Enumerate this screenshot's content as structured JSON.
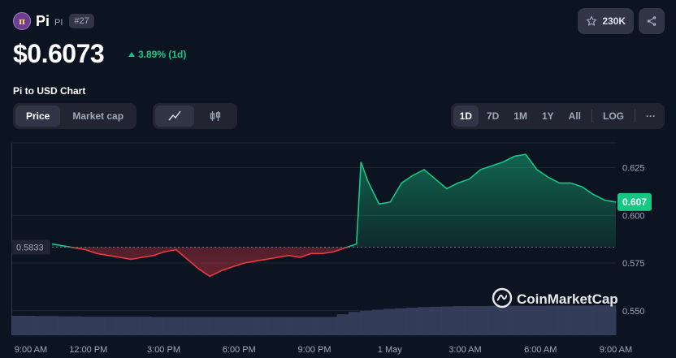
{
  "coin": {
    "name": "Pi",
    "symbol": "PI",
    "rank": "#27",
    "logo_glyph": "π"
  },
  "actions": {
    "watchlist_count": "230K",
    "star_icon": "star-icon",
    "share_icon": "share-icon"
  },
  "price": {
    "value": "$0.6073",
    "change": "3.89% (1d)",
    "direction": "up"
  },
  "chart_title": "Pi to USD Chart",
  "chart_type_tabs": [
    {
      "label": "Price",
      "active": true
    },
    {
      "label": "Market cap",
      "active": false
    }
  ],
  "chart_style_icons": [
    "line-chart-icon",
    "candlestick-icon"
  ],
  "range_tabs": [
    {
      "label": "1D",
      "active": true
    },
    {
      "label": "7D",
      "active": false
    },
    {
      "label": "1M",
      "active": false
    },
    {
      "label": "1Y",
      "active": false
    },
    {
      "label": "All",
      "active": false
    }
  ],
  "log_label": "LOG",
  "more_label": "···",
  "watermark": "CoinMarketCap",
  "colors": {
    "up": "#16c784",
    "down": "#ea3943",
    "background": "#0d1421",
    "panel": "#323546"
  },
  "chart_data": {
    "type": "line",
    "x_ticks": [
      "9:00 AM",
      "12:00 PM",
      "3:00 PM",
      "6:00 PM",
      "9:00 PM",
      "1 May",
      "3:00 AM",
      "6:00 AM",
      "9:00 AM"
    ],
    "y_ticks": [
      "0.625",
      "0.600",
      "0.575",
      "0.550"
    ],
    "ylim": [
      0.538,
      0.638
    ],
    "reference_price": 0.5833,
    "reference_label": "0.5833",
    "current_label": "0.607",
    "grid": true,
    "series": [
      {
        "x": [
          0,
          0.5,
          1,
          1.5,
          2,
          2.5,
          3,
          3.5,
          4,
          4.5,
          5,
          5.5,
          6,
          6.5,
          7,
          7.5,
          8,
          8.5,
          9,
          9.5,
          10,
          10.5,
          11,
          11.5,
          12,
          12.5,
          13,
          13.5,
          13.7,
          14,
          14.5,
          15,
          15.5,
          16,
          16.5,
          17,
          17.5,
          18,
          18.5,
          19,
          19.5,
          20,
          20.5,
          21,
          21.5,
          22,
          22.5,
          23,
          23.5,
          24,
          24.5,
          25
        ],
        "y": [
          0.585,
          0.584,
          0.583,
          0.582,
          0.58,
          0.579,
          0.578,
          0.577,
          0.578,
          0.579,
          0.581,
          0.582,
          0.577,
          0.572,
          0.568,
          0.571,
          0.573,
          0.575,
          0.576,
          0.577,
          0.578,
          0.579,
          0.578,
          0.58,
          0.58,
          0.581,
          0.583,
          0.585,
          0.628,
          0.618,
          0.606,
          0.607,
          0.617,
          0.621,
          0.624,
          0.619,
          0.614,
          0.617,
          0.619,
          0.624,
          0.626,
          0.628,
          0.631,
          0.632,
          0.624,
          0.62,
          0.617,
          0.617,
          0.615,
          0.611,
          0.608,
          0.607
        ]
      }
    ],
    "volume_level": [
      0.65,
      0.65,
      0.64,
      0.64,
      0.63,
      0.63,
      0.62,
      0.62,
      0.62,
      0.62,
      0.62,
      0.62,
      0.61,
      0.61,
      0.61,
      0.61,
      0.61,
      0.61,
      0.61,
      0.61,
      0.61,
      0.61,
      0.61,
      0.61,
      0.61,
      0.61,
      0.61,
      0.61,
      0.7,
      0.78,
      0.82,
      0.85,
      0.88,
      0.9,
      0.92,
      0.94,
      0.95,
      0.96,
      0.97,
      0.97,
      0.97,
      0.98,
      0.98,
      0.98,
      0.98,
      0.98,
      0.99,
      0.99,
      0.99,
      0.99,
      1.0,
      1.0
    ]
  }
}
